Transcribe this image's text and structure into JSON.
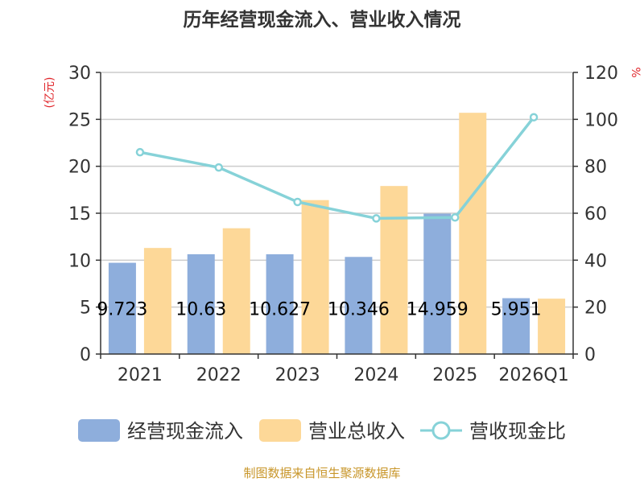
{
  "chart_data": {
    "type": "bar",
    "title": "历年经营现金流入、营业收入情况",
    "left_unit": "(亿元)",
    "right_unit": "%",
    "categories": [
      "2021",
      "2022",
      "2023",
      "2024",
      "2025",
      "2026Q1"
    ],
    "ylim_left": [
      0,
      30
    ],
    "yticks_left": [
      "0",
      "5",
      "10",
      "15",
      "20",
      "25",
      "30"
    ],
    "ylim_right": [
      0,
      120
    ],
    "yticks_right": [
      "0",
      "20",
      "40",
      "60",
      "80",
      "100",
      "120"
    ],
    "series": [
      {
        "name": "经营现金流入",
        "type": "bar",
        "axis": "left",
        "color": "#8eaedc",
        "values": [
          9.723,
          10.63,
          10.627,
          10.346,
          14.959,
          5.951
        ],
        "labels": [
          "9.723",
          "10.63",
          "10.627",
          "10.346",
          "14.959",
          "5.951"
        ]
      },
      {
        "name": "营业总收入",
        "type": "bar",
        "axis": "left",
        "color": "#fdd898",
        "values": [
          11.3,
          13.4,
          16.4,
          17.9,
          25.7,
          5.9
        ]
      },
      {
        "name": "营收现金比",
        "type": "line",
        "axis": "right",
        "color": "#86d2d8",
        "values": [
          86,
          79.5,
          64.8,
          57.8,
          58.2,
          100.9
        ]
      }
    ],
    "grid": true,
    "legend_position": "bottom"
  },
  "source": "制图数据来自恒生聚源数据库"
}
